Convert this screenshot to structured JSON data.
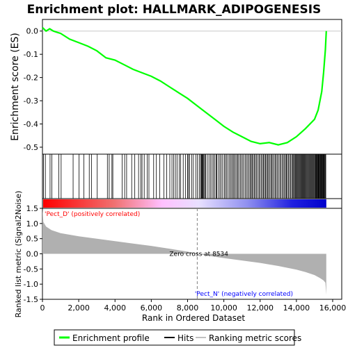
{
  "chart_data": {
    "type": "line",
    "title": "Enrichment plot: HALLMARK_ADIPOGENESIS",
    "panel_es": {
      "ylabel": "Enrichment score (ES)",
      "ylim": [
        -0.53,
        0.05
      ],
      "yticks": [
        "0.0",
        "-0.1",
        "-0.2",
        "-0.3",
        "-0.4",
        "-0.5"
      ],
      "ytick_values": [
        0.0,
        -0.1,
        -0.2,
        -0.3,
        -0.4,
        -0.5
      ],
      "series": [
        {
          "name": "Enrichment profile",
          "color": "#00ff00",
          "x": [
            0,
            200,
            400,
            600,
            800,
            1000,
            1500,
            2000,
            2500,
            3000,
            3500,
            4000,
            4500,
            5000,
            5500,
            6000,
            6500,
            7000,
            7500,
            8000,
            8500,
            9000,
            9500,
            10000,
            10500,
            11000,
            11500,
            12000,
            12500,
            13000,
            13500,
            14000,
            14500,
            15000,
            15200,
            15400,
            15500,
            15600,
            15650
          ],
          "y": [
            0.015,
            0.0,
            0.01,
            0.0,
            -0.005,
            -0.01,
            -0.035,
            -0.05,
            -0.065,
            -0.085,
            -0.115,
            -0.125,
            -0.145,
            -0.165,
            -0.18,
            -0.195,
            -0.215,
            -0.24,
            -0.265,
            -0.29,
            -0.32,
            -0.35,
            -0.38,
            -0.41,
            -0.435,
            -0.455,
            -0.475,
            -0.485,
            -0.48,
            -0.49,
            -0.48,
            -0.455,
            -0.42,
            -0.38,
            -0.34,
            -0.26,
            -0.18,
            -0.08,
            0.0
          ]
        }
      ]
    },
    "panel_hits": {
      "label": "Hits",
      "hit_ranks": [
        60,
        160,
        420,
        520,
        900,
        1030,
        1690,
        2020,
        2280,
        2580,
        2700,
        3020,
        3580,
        3680,
        3830,
        3880,
        4390,
        4530,
        4640,
        4920,
        5090,
        5300,
        5420,
        5490,
        5610,
        5780,
        5870,
        6130,
        6280,
        6460,
        6690,
        6850,
        7020,
        7140,
        7230,
        7330,
        7420,
        7540,
        7620,
        7760,
        7880,
        8000,
        8050,
        8120,
        8230,
        8320,
        8450,
        8540,
        8640,
        8710,
        8760,
        8790,
        8820,
        8860,
        8900,
        8950,
        9000,
        9090,
        9180,
        9260,
        9350,
        9420,
        9500,
        9570,
        9610,
        9700,
        9780,
        9850,
        9930,
        10020,
        10080,
        10150,
        10230,
        10300,
        10380,
        10440,
        10510,
        10560,
        10630,
        10700,
        10760,
        10820,
        10900,
        10960,
        11040,
        11100,
        11180,
        11250,
        11320,
        11390,
        11460,
        11510,
        11560,
        11620,
        11680,
        11740,
        11800,
        11870,
        11940,
        12000,
        12070,
        12130,
        12180,
        12240,
        12300,
        12350,
        12410,
        12460,
        12530,
        12590,
        12640,
        12700,
        12770,
        12830,
        12890,
        12950,
        13020,
        13090,
        13150,
        13220,
        13280,
        13340,
        13400,
        13450,
        13500,
        13560,
        13620,
        13680,
        13740,
        13790,
        13840,
        13890,
        13930,
        13970,
        14010,
        14050,
        14090,
        14130,
        14170,
        14210,
        14250,
        14290,
        14330,
        14370,
        14410,
        14450,
        14490,
        14530,
        14570,
        14610,
        14650,
        14690,
        14730,
        14770,
        14810,
        14850,
        14890,
        14930,
        14970,
        15010,
        15050,
        15080,
        15110,
        15140,
        15170,
        15200,
        15230,
        15260,
        15290,
        15320,
        15350,
        15380,
        15410,
        15440,
        15470,
        15500,
        15530,
        15560,
        15590,
        15620
      ]
    },
    "panel_metric": {
      "ylabel": "Ranked list metric (Signal2Noise)",
      "xlabel": "Rank in Ordered Dataset",
      "ylim": [
        -1.5,
        1.5
      ],
      "yticks": [
        "1.5",
        "1.0",
        "0.5",
        "0.0",
        "-0.5",
        "-1.0",
        "-1.5"
      ],
      "ytick_values": [
        1.5,
        1.0,
        0.5,
        0.0,
        -0.5,
        -1.0,
        -1.5
      ],
      "xlim": [
        0,
        16500
      ],
      "xticks": [
        "0",
        "2,000",
        "4,000",
        "6,000",
        "8,000",
        "10,000",
        "12,000",
        "14,000",
        "16,000"
      ],
      "xtick_values": [
        0,
        2000,
        4000,
        6000,
        8000,
        10000,
        12000,
        14000,
        16000
      ],
      "metric_curve": {
        "x": [
          0,
          50,
          200,
          500,
          1000,
          2000,
          3000,
          4000,
          5000,
          6000,
          7000,
          8000,
          8534,
          9000,
          10000,
          11000,
          12000,
          13000,
          14000,
          14500,
          15000,
          15300,
          15500,
          15600,
          15650
        ],
        "y": [
          1.6,
          1.05,
          0.9,
          0.78,
          0.68,
          0.58,
          0.5,
          0.42,
          0.34,
          0.26,
          0.17,
          0.07,
          0.0,
          -0.05,
          -0.14,
          -0.22,
          -0.3,
          -0.4,
          -0.52,
          -0.6,
          -0.7,
          -0.8,
          -0.88,
          -0.95,
          -1.35
        ]
      },
      "zero_cross_label": "Zero cross at 8534",
      "zero_cross": 8534,
      "pos_label": "'Pect_D' (positively correlated)",
      "neg_label": "'Pect_N' (negatively correlated)",
      "pos_color": "#ff0000",
      "neg_color": "#0000ff"
    },
    "legend": [
      {
        "label": "Enrichment profile",
        "color": "#00ff00"
      },
      {
        "label": "Hits",
        "color": "#000000"
      },
      {
        "label": "Ranking metric scores",
        "color": "#c0c0c0"
      }
    ],
    "total_ranks": 15650
  }
}
